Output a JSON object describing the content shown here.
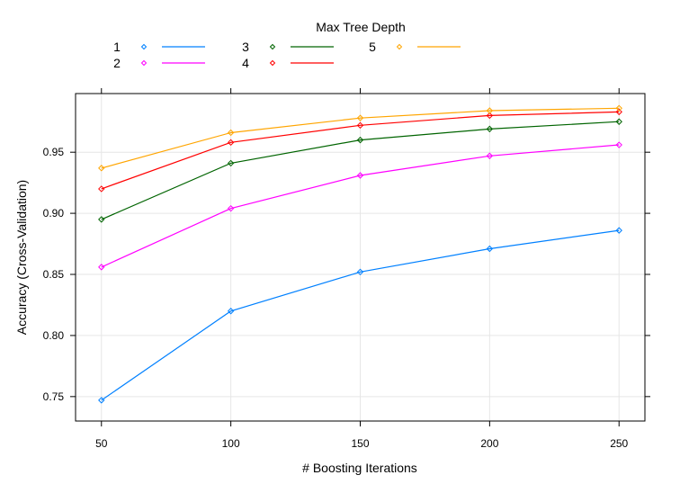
{
  "chart_data": {
    "type": "line",
    "xlabel": "# Boosting Iterations",
    "ylabel": "Accuracy (Cross-Validation)",
    "xlim": [
      40,
      260
    ],
    "ylim": [
      0.73,
      0.998
    ],
    "x": [
      50,
      100,
      150,
      200,
      250
    ],
    "x_ticks": [
      50,
      100,
      150,
      200,
      250
    ],
    "y_ticks": [
      0.75,
      0.8,
      0.85,
      0.9,
      0.95
    ],
    "y_tick_labels": [
      "0.75",
      "0.80",
      "0.85",
      "0.90",
      "0.95"
    ],
    "grid": true,
    "legend": {
      "title": "Max Tree Depth",
      "placement": "top"
    },
    "series": [
      {
        "name": "1",
        "color": "#0080ff",
        "values": [
          0.747,
          0.82,
          0.852,
          0.871,
          0.886
        ]
      },
      {
        "name": "2",
        "color": "#ff00ff",
        "values": [
          0.856,
          0.904,
          0.931,
          0.947,
          0.956
        ]
      },
      {
        "name": "3",
        "color": "#006400",
        "values": [
          0.895,
          0.941,
          0.96,
          0.969,
          0.975
        ]
      },
      {
        "name": "4",
        "color": "#ff0000",
        "values": [
          0.92,
          0.958,
          0.972,
          0.98,
          0.983
        ]
      },
      {
        "name": "5",
        "color": "#ffa500",
        "values": [
          0.937,
          0.966,
          0.978,
          0.984,
          0.986
        ]
      }
    ]
  }
}
